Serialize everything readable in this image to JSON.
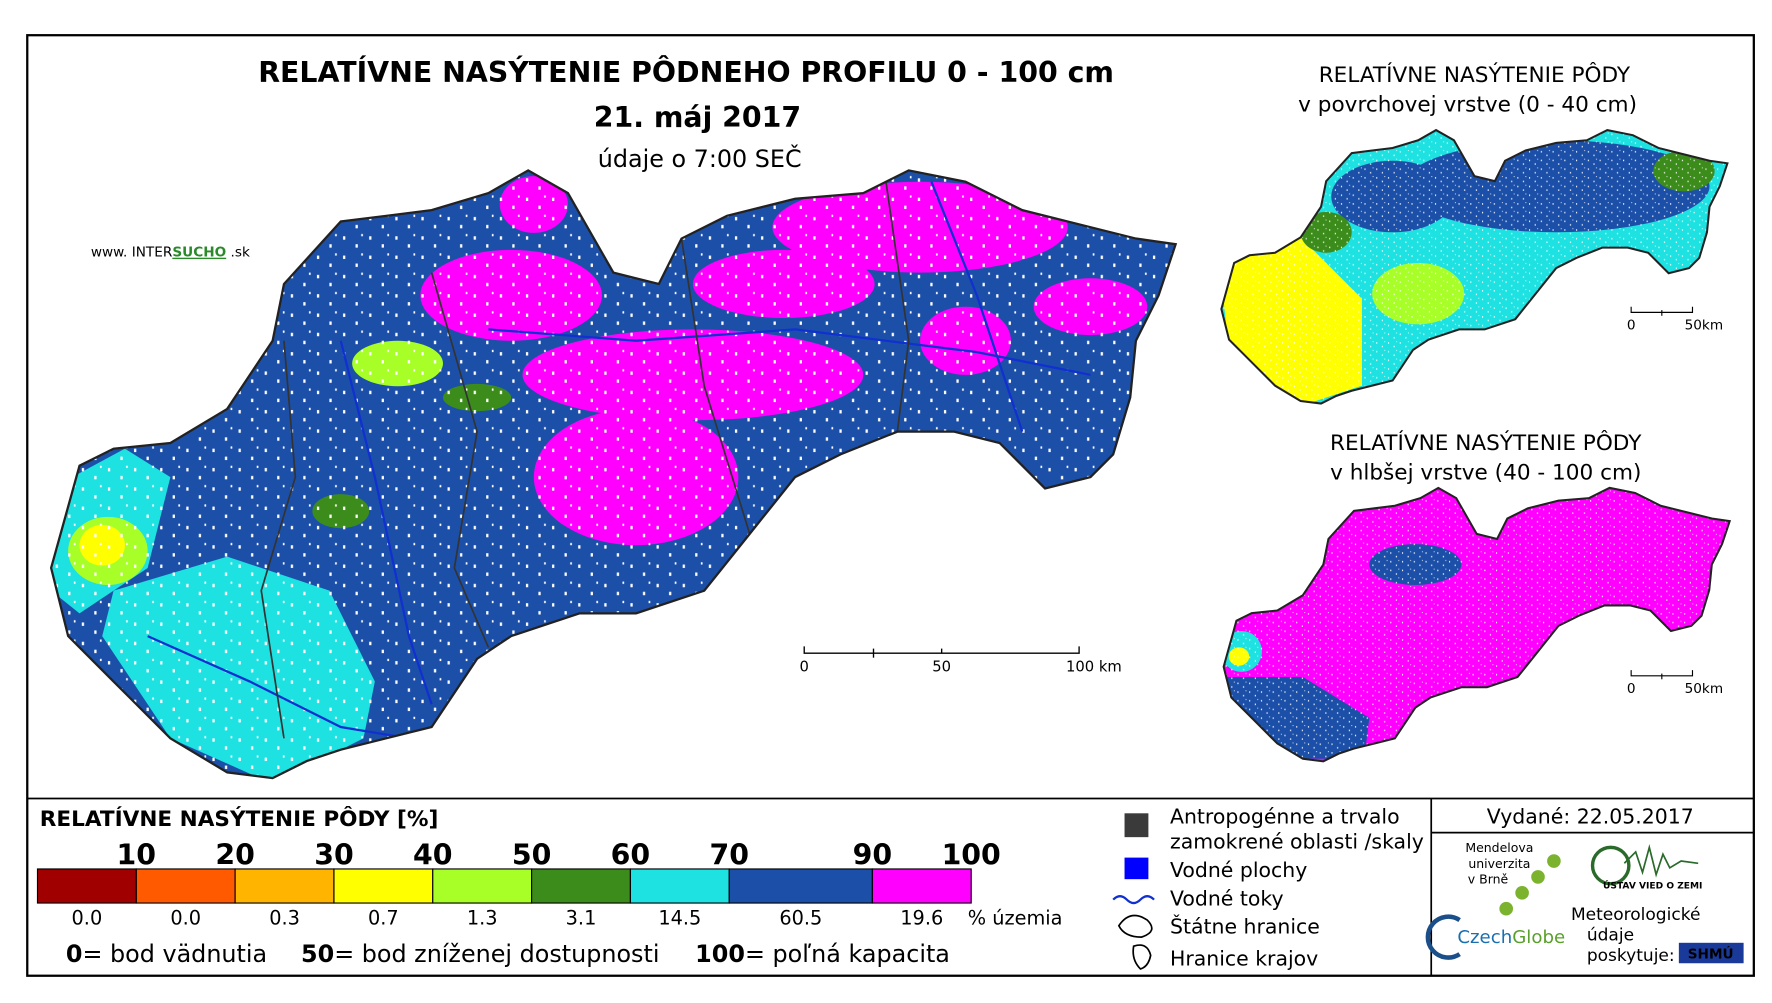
{
  "header": {
    "title": "RELATÍVNE NASÝTENIE PÔDNEHO PROFILU 0 - 100 cm",
    "date": "21. máj 2017",
    "time": "údaje o 7:00 SEČ"
  },
  "source": {
    "prefix": "www. INTER",
    "brand": "SUCHO",
    "suffix": " .sk"
  },
  "main_map": {
    "scale": [
      "0",
      "50",
      "100 km"
    ]
  },
  "inset_maps": [
    {
      "title": "RELATÍVNE NASÝTENIE PÔDY",
      "subtitle": "v povrchovej vrstve (0 - 40 cm)",
      "scale": [
        "0",
        "50km"
      ]
    },
    {
      "title": "RELATÍVNE NASÝTENIE PÔDY",
      "subtitle": "v hlbšej vrstve (40 - 100 cm)",
      "scale": [
        "0",
        "50km"
      ]
    }
  ],
  "legend": {
    "title": "RELATÍVNE NASÝTENIE PÔDY [%]",
    "breaks": [
      "10",
      "20",
      "30",
      "40",
      "50",
      "60",
      "70",
      "90",
      "100"
    ],
    "classes": [
      {
        "color": "#a00000",
        "share": "0.0"
      },
      {
        "color": "#ff5a00",
        "share": "0.0"
      },
      {
        "color": "#ffb400",
        "share": "0.3"
      },
      {
        "color": "#ffff00",
        "share": "0.7"
      },
      {
        "color": "#a8ff28",
        "share": "1.3"
      },
      {
        "color": "#3c8c1c",
        "share": "3.1"
      },
      {
        "color": "#1ee1e1",
        "share": "14.5"
      },
      {
        "color": "#1c50a8",
        "share": "60.5"
      },
      {
        "color": "#ff00ff",
        "share": "19.6"
      }
    ],
    "share_unit": "% územia",
    "notes": [
      {
        "value": "0",
        "text": "= bod vädnutia"
      },
      {
        "value": "50",
        "text": "= bod zníženej dostupnosti"
      },
      {
        "value": "100",
        "text": "= poľná kapacita"
      }
    ]
  },
  "symbols": [
    "Antropogénne a trvalo",
    "zamokrené oblasti /skaly",
    "Vodné plochy",
    "Vodné toky",
    "Štátne hranice",
    "Hranice krajov"
  ],
  "issued": "Vydané: 22.05.2017",
  "logos": {
    "mendel": [
      "Mendelova",
      "univerzita",
      "v Brně"
    ],
    "czechglobe": [
      "Czech",
      "Globe"
    ],
    "uvz": "ÚSTAV VIED O ZEMI",
    "shmu_text": [
      "Meteorologické",
      "údaje",
      "poskytuje:"
    ],
    "shmu": "SHMÚ"
  }
}
